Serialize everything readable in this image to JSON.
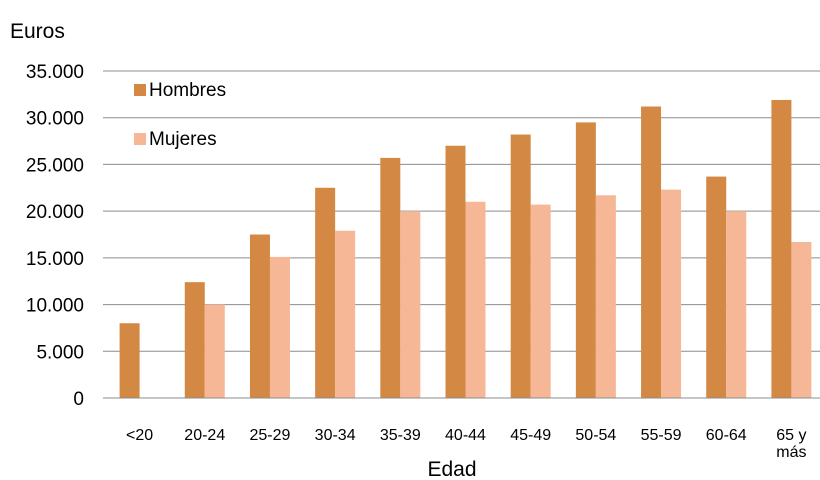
{
  "chart_data": {
    "type": "bar",
    "ylabel": "Euros",
    "xlabel": "Edad",
    "ylim": [
      0,
      35000
    ],
    "yticks": [
      0,
      5000,
      10000,
      15000,
      20000,
      25000,
      30000,
      35000
    ],
    "ytick_labels": [
      "0",
      "5.000",
      "10.000",
      "15.000",
      "20.000",
      "25.000",
      "30.000",
      "35.000"
    ],
    "grid": true,
    "legend_position": "top-left",
    "categories": [
      "<20",
      "20-24",
      "25-29",
      "30-34",
      "35-39",
      "40-44",
      "45-49",
      "50-54",
      "55-59",
      "60-64",
      "65 y más"
    ],
    "category_lines": [
      [
        "<20"
      ],
      [
        "20-24"
      ],
      [
        "25-29"
      ],
      [
        "30-34"
      ],
      [
        "35-39"
      ],
      [
        "40-44"
      ],
      [
        "45-49"
      ],
      [
        "50-54"
      ],
      [
        "55-59"
      ],
      [
        "60-64"
      ],
      [
        "65 y",
        "más"
      ]
    ],
    "series": [
      {
        "name": "Hombres",
        "color": "#D38843",
        "values": [
          8000,
          12400,
          17500,
          22500,
          25700,
          27000,
          28200,
          29500,
          31200,
          23700,
          31900
        ]
      },
      {
        "name": "Mujeres",
        "color": "#F5B796",
        "values": [
          null,
          10000,
          15100,
          17900,
          20000,
          21000,
          20700,
          21700,
          22300,
          20000,
          16700
        ]
      }
    ]
  }
}
